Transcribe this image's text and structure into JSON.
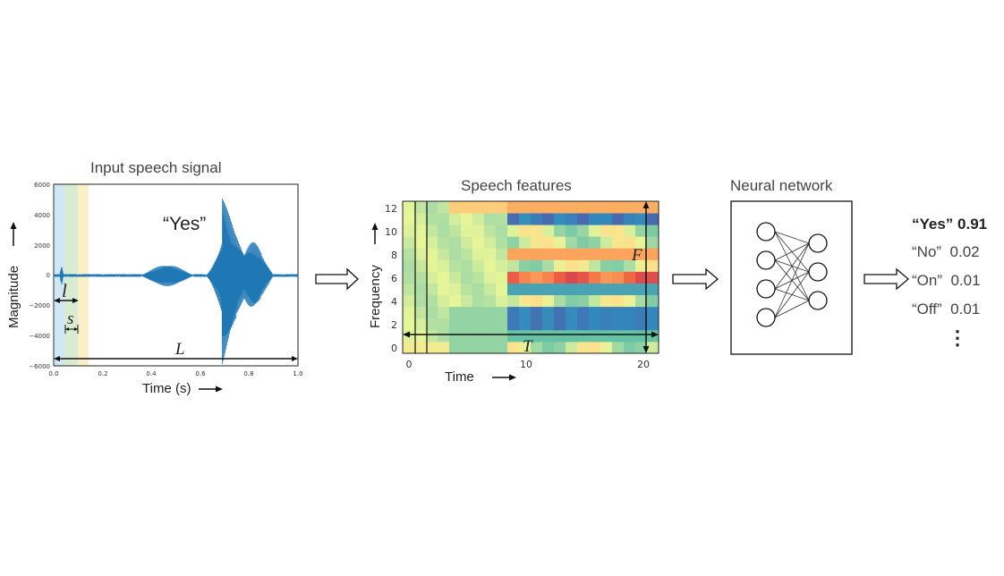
{
  "waveform": {
    "title": "Input speech signal",
    "word_label": "“Yes”",
    "ylabel": "Magnitude",
    "xlabel": "Time (s)",
    "yticks": [
      "6000",
      "4000",
      "2000",
      "0",
      "−2000",
      "−4000",
      "−6000"
    ],
    "xticks": [
      "0.0",
      "0.2",
      "0.4",
      "0.6",
      "0.8",
      "1.0"
    ],
    "window_length_symbol": "l",
    "stride_symbol": "s",
    "signal_length_symbol": "L",
    "window_colors": [
      "#cfe6f5",
      "#d9ecd2",
      "#fbefc8"
    ],
    "line_color": "#1f77b4"
  },
  "features": {
    "title": "Speech features",
    "ylabel": "Frequency",
    "xlabel": "Time",
    "yticks": [
      "0",
      "2",
      "4",
      "6",
      "8",
      "10",
      "12"
    ],
    "xticks": [
      "0",
      "10",
      "20"
    ],
    "time_symbol": "T",
    "freq_symbol": "F"
  },
  "network": {
    "title": "Neural network",
    "input_nodes": 4,
    "output_nodes": 3
  },
  "outputs": {
    "items": [
      {
        "word": "“Yes”",
        "score": "0.91",
        "bold": true
      },
      {
        "word": "“No”",
        "score": "0.02",
        "bold": false
      },
      {
        "word": "“On”",
        "score": "0.01",
        "bold": false
      },
      {
        "word": "“Off”",
        "score": "0.01",
        "bold": false
      }
    ],
    "more": "⋮"
  }
}
